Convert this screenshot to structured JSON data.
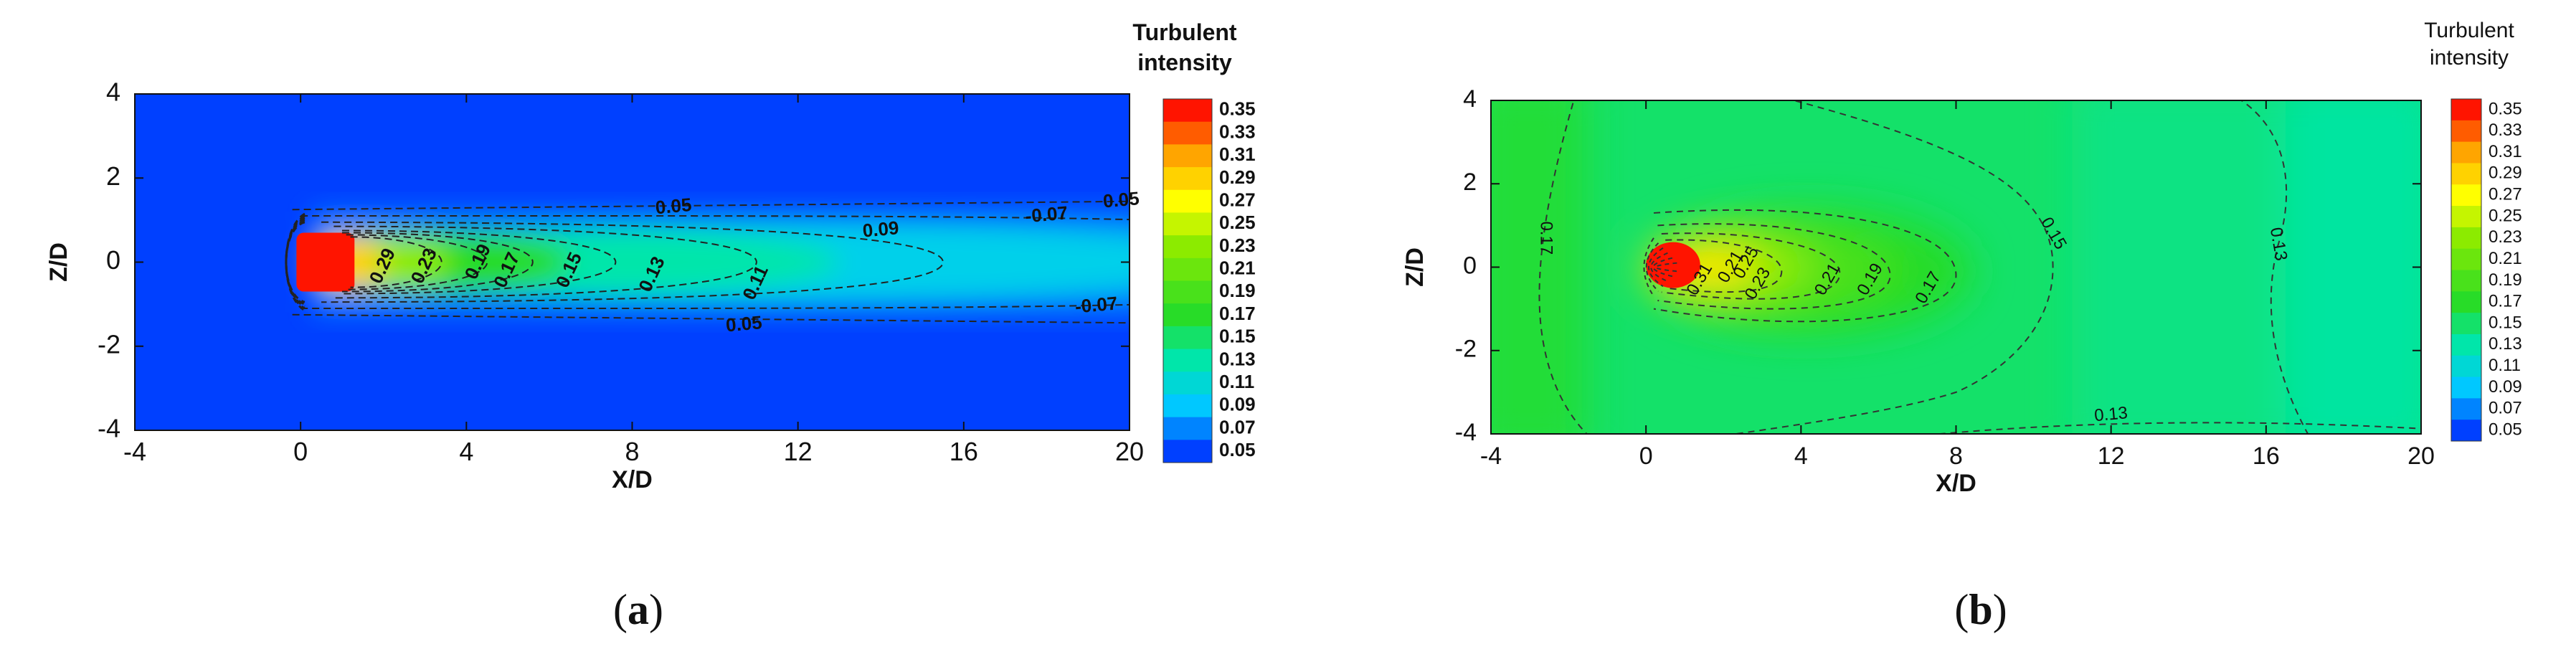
{
  "chart_data": [
    {
      "type": "heatmap",
      "panel_label": "(a)",
      "panel_label_parts": [
        "(",
        "a",
        ")"
      ],
      "xlabel": "X/D",
      "ylabel": "Z/D",
      "xlim": [
        -4,
        20
      ],
      "ylim": [
        -4,
        4
      ],
      "x_ticks": [
        "-4",
        "0",
        "4",
        "8",
        "12",
        "16",
        "20"
      ],
      "y_ticks": [
        "-4",
        "-2",
        "0",
        "2",
        "4"
      ],
      "colorbar": {
        "title_lines": [
          "Turbulent",
          "intensity"
        ],
        "levels": [
          "0.35",
          "0.33",
          "0.31",
          "0.29",
          "0.27",
          "0.25",
          "0.23",
          "0.21",
          "0.19",
          "0.17",
          "0.15",
          "0.13",
          "0.11",
          "0.09",
          "0.07",
          "0.05"
        ],
        "range": [
          0.05,
          0.35
        ]
      },
      "background_value": 0.05,
      "contour_labels": [
        {
          "text": "0.05",
          "x": 9.0,
          "z": 1.3
        },
        {
          "text": "0.05",
          "x": 19.8,
          "z": 1.45
        },
        {
          "text": "-0.07",
          "x": 18.0,
          "z": 1.1
        },
        {
          "text": "0.09",
          "x": 14.0,
          "z": 0.75
        },
        {
          "text": "0.29",
          "x": 2.0,
          "z": -0.1
        },
        {
          "text": "0.23",
          "x": 3.0,
          "z": -0.1
        },
        {
          "text": "0.19",
          "x": 4.3,
          "z": 0.0
        },
        {
          "text": "0.17",
          "x": 5.0,
          "z": -0.2
        },
        {
          "text": "0.15",
          "x": 6.5,
          "z": -0.2
        },
        {
          "text": "0.13",
          "x": 8.5,
          "z": -0.3
        },
        {
          "text": "0.11",
          "x": 11.0,
          "z": -0.5
        },
        {
          "text": "0.05",
          "x": 10.7,
          "z": -1.5
        },
        {
          "text": "-0.07",
          "x": 19.2,
          "z": -1.05
        }
      ]
    },
    {
      "type": "heatmap",
      "panel_label": "(b)",
      "panel_label_parts": [
        "(",
        "b",
        ")"
      ],
      "xlabel": "X/D",
      "ylabel": "Z/D",
      "xlim": [
        -4,
        20
      ],
      "ylim": [
        -4,
        4
      ],
      "x_ticks": [
        "-4",
        "0",
        "4",
        "8",
        "12",
        "16",
        "20"
      ],
      "y_ticks": [
        "-4",
        "-2",
        "0",
        "2",
        "4"
      ],
      "colorbar": {
        "title_lines": [
          "Turbulent",
          "intensity"
        ],
        "levels": [
          "0.35",
          "0.33",
          "0.31",
          "0.29",
          "0.27",
          "0.25",
          "0.23",
          "0.21",
          "0.19",
          "0.17",
          "0.15",
          "0.13",
          "0.11",
          "0.09",
          "0.07",
          "0.05"
        ],
        "range": [
          0.05,
          0.35
        ]
      },
      "background_value": 0.15,
      "contour_labels": [
        {
          "text": "0.17",
          "x": -2.6,
          "z": 0.7
        },
        {
          "text": "0.31",
          "x": 1.4,
          "z": -0.3
        },
        {
          "text": "0.21",
          "x": 2.2,
          "z": 0.0
        },
        {
          "text": "0.25",
          "x": 2.6,
          "z": 0.1
        },
        {
          "text": "0.23",
          "x": 2.9,
          "z": -0.4
        },
        {
          "text": "0.21",
          "x": 4.7,
          "z": -0.3
        },
        {
          "text": "0.19",
          "x": 5.8,
          "z": -0.3
        },
        {
          "text": "0.17",
          "x": 7.3,
          "z": -0.5
        },
        {
          "text": "0.15",
          "x": 10.5,
          "z": 0.8
        },
        {
          "text": "0.13",
          "x": 16.3,
          "z": 0.55
        },
        {
          "text": "0.13",
          "x": 12.0,
          "z": -3.55
        }
      ]
    }
  ]
}
